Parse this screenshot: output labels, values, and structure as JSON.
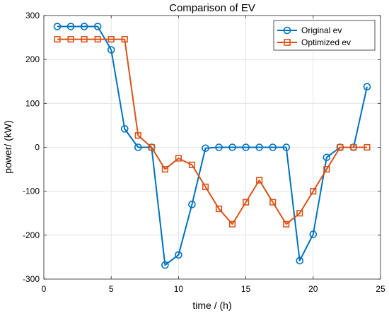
{
  "chart_data": {
    "type": "line",
    "title": "Comparison of EV",
    "xlabel": "time / (h)",
    "ylabel": "power/ (kW)",
    "xlim": [
      0,
      25
    ],
    "ylim": [
      -300,
      300
    ],
    "xticks": [
      "0",
      "5",
      "10",
      "15",
      "20",
      "25"
    ],
    "yticks": [
      "-300",
      "-200",
      "-100",
      "0",
      "100",
      "200",
      "300"
    ],
    "grid": true,
    "legend_position": "top-right",
    "series": [
      {
        "name": "Original ev",
        "color": "#0072BD",
        "marker": "circle",
        "x": [
          1,
          2,
          3,
          4,
          5,
          6,
          7,
          8,
          9,
          10,
          11,
          12,
          13,
          14,
          15,
          16,
          17,
          18,
          19,
          20,
          21,
          22,
          23,
          24
        ],
        "y": [
          275,
          275,
          275,
          275,
          222,
          42,
          0,
          0,
          -268,
          -245,
          -130,
          -2,
          0,
          0,
          0,
          0,
          0,
          0,
          -258,
          -198,
          -23,
          0,
          0,
          138
        ]
      },
      {
        "name": "Optimized ev",
        "color": "#D95319",
        "marker": "square",
        "x": [
          1,
          2,
          3,
          4,
          5,
          6,
          7,
          8,
          9,
          10,
          11,
          12,
          13,
          14,
          15,
          16,
          17,
          18,
          19,
          20,
          21,
          22,
          23,
          24
        ],
        "y": [
          246,
          246,
          246,
          246,
          246,
          246,
          27,
          0,
          -50,
          -25,
          -40,
          -90,
          -140,
          -175,
          -125,
          -75,
          -125,
          -175,
          -150,
          -100,
          -50,
          0,
          0,
          0
        ]
      }
    ]
  }
}
